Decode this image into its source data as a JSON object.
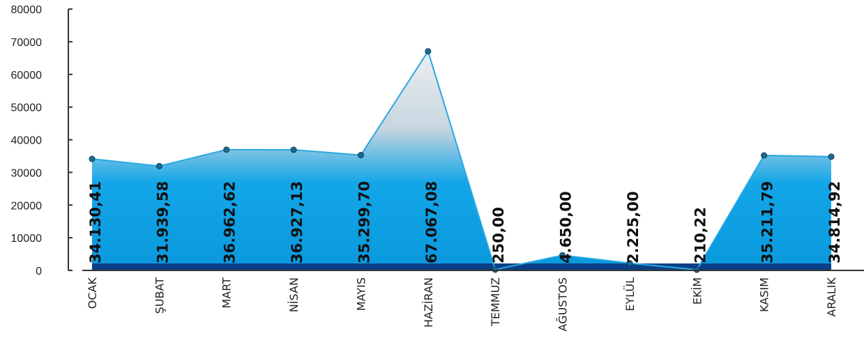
{
  "chart_data": {
    "type": "area",
    "categories": [
      "OCAK",
      "ŞUBAT",
      "MART",
      "NİSAN",
      "MAYIS",
      "HAZİRAN",
      "TEMMUZ",
      "AĞUSTOS",
      "EYLÜL",
      "EKİM",
      "KASIM",
      "ARALIK"
    ],
    "values": [
      34130.41,
      31939.58,
      36962.62,
      36927.13,
      35299.7,
      67067.08,
      250.0,
      4650.0,
      2225.0,
      210.22,
      35211.79,
      34814.92
    ],
    "data_labels": [
      "34.130,41",
      "31.939,58",
      "36.962,62",
      "36.927,13",
      "35.299,70",
      "67.067,08",
      "250,00",
      "4.650,00",
      "2.225,00",
      "210,22",
      "35.211,79",
      "34.814,92"
    ],
    "y_ticks": [
      "0",
      "10000",
      "20000",
      "30000",
      "40000",
      "50000",
      "60000",
      "70000",
      "80000"
    ],
    "ylim": [
      0,
      80000
    ],
    "grid": false,
    "colors": {
      "line": "#29a8e0",
      "fill_top": "#e2e4e6",
      "fill_bottom": "#0aa2e6",
      "base": "#0b3f86",
      "marker": "#1c6b8f"
    }
  }
}
